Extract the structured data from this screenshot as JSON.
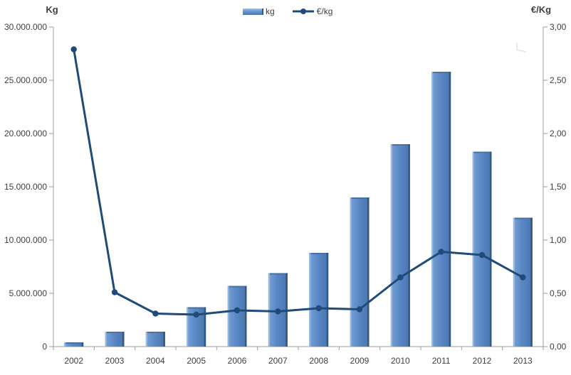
{
  "chart_data": {
    "type": "bar",
    "title": "",
    "categories": [
      "2002",
      "2003",
      "2004",
      "2005",
      "2006",
      "2007",
      "2008",
      "2009",
      "2010",
      "2011",
      "2012",
      "2013"
    ],
    "series": [
      {
        "name": "kg",
        "type": "bar",
        "axis": "left",
        "color": "#5B88C6",
        "values": [
          400000,
          1400000,
          1400000,
          3700000,
          5700000,
          6900000,
          8800000,
          14000000,
          19000000,
          25800000,
          18300000,
          12100000
        ]
      },
      {
        "name": "€/kg",
        "type": "line",
        "axis": "right",
        "color": "#1F4B7A",
        "values": [
          2.79,
          0.51,
          0.31,
          0.3,
          0.34,
          0.33,
          0.36,
          0.35,
          0.65,
          0.89,
          0.86,
          0.65
        ]
      }
    ],
    "left_axis": {
      "title": "Kg",
      "min": 0,
      "max": 30000000,
      "tick_labels": [
        "30.000.000",
        "25.000.000",
        "20.000.000",
        "15.000.000",
        "10.000.000",
        "5.000.000",
        "0"
      ]
    },
    "right_axis": {
      "title": "€/Kg",
      "min": 0,
      "max": 3,
      "tick_labels": [
        "3,00",
        "2,50",
        "2,00",
        "1,50",
        "1,00",
        "0,50",
        "0,00"
      ]
    },
    "legend_position": "top",
    "grid": false,
    "colors": {
      "bar_fill": "#5B88C6",
      "bar_highlight": "#9BBAE2",
      "bar_shadow": "#35587F",
      "bar_top": "#4A719F",
      "line": "#1F4B7A",
      "axis": "#9E9E9E",
      "text": "#3F3F3F"
    }
  }
}
